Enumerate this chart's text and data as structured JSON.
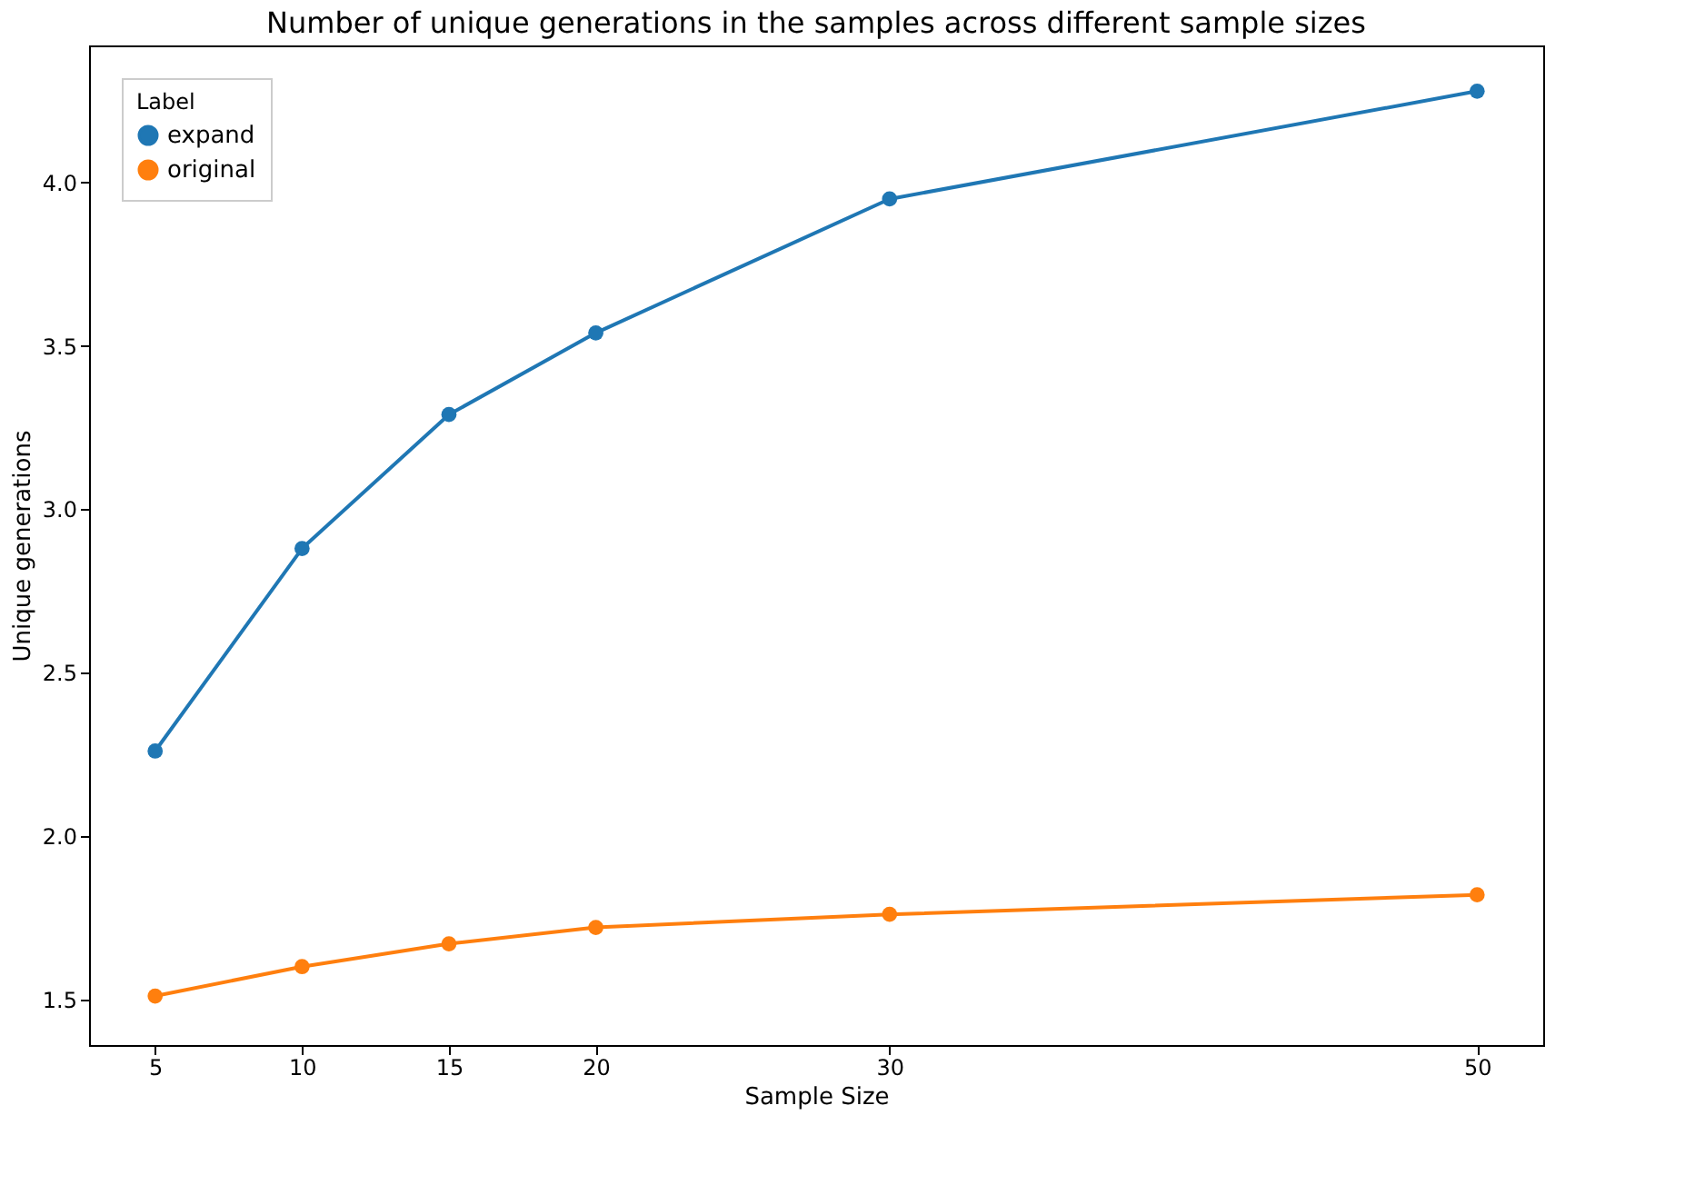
{
  "chart_data": {
    "type": "line",
    "title": "Number of unique generations in the samples across different sample sizes",
    "xlabel": "Sample Size",
    "ylabel": "Unique generations",
    "legend_title": "Label",
    "x": [
      5,
      10,
      15,
      20,
      30,
      50
    ],
    "series": [
      {
        "name": "expand",
        "color": "#1f77b4",
        "values": [
          2.26,
          2.88,
          3.29,
          3.54,
          3.95,
          4.28
        ]
      },
      {
        "name": "original",
        "color": "#ff7f0e",
        "values": [
          1.51,
          1.6,
          1.67,
          1.72,
          1.76,
          1.82
        ]
      }
    ],
    "xlim": [
      2.75,
      52.25
    ],
    "xticks": [
      5,
      10,
      15,
      20,
      30,
      50
    ],
    "ylim": [
      1.36,
      4.42
    ],
    "yticks": [
      1.5,
      {
        "value": 2,
        "label": "2.0"
      },
      2.5,
      {
        "value": 3,
        "label": "3.0"
      },
      3.5,
      {
        "value": 4,
        "label": "4.0"
      }
    ],
    "marker": "circle",
    "line_style": "solid",
    "legend": "top left",
    "grid": false
  }
}
